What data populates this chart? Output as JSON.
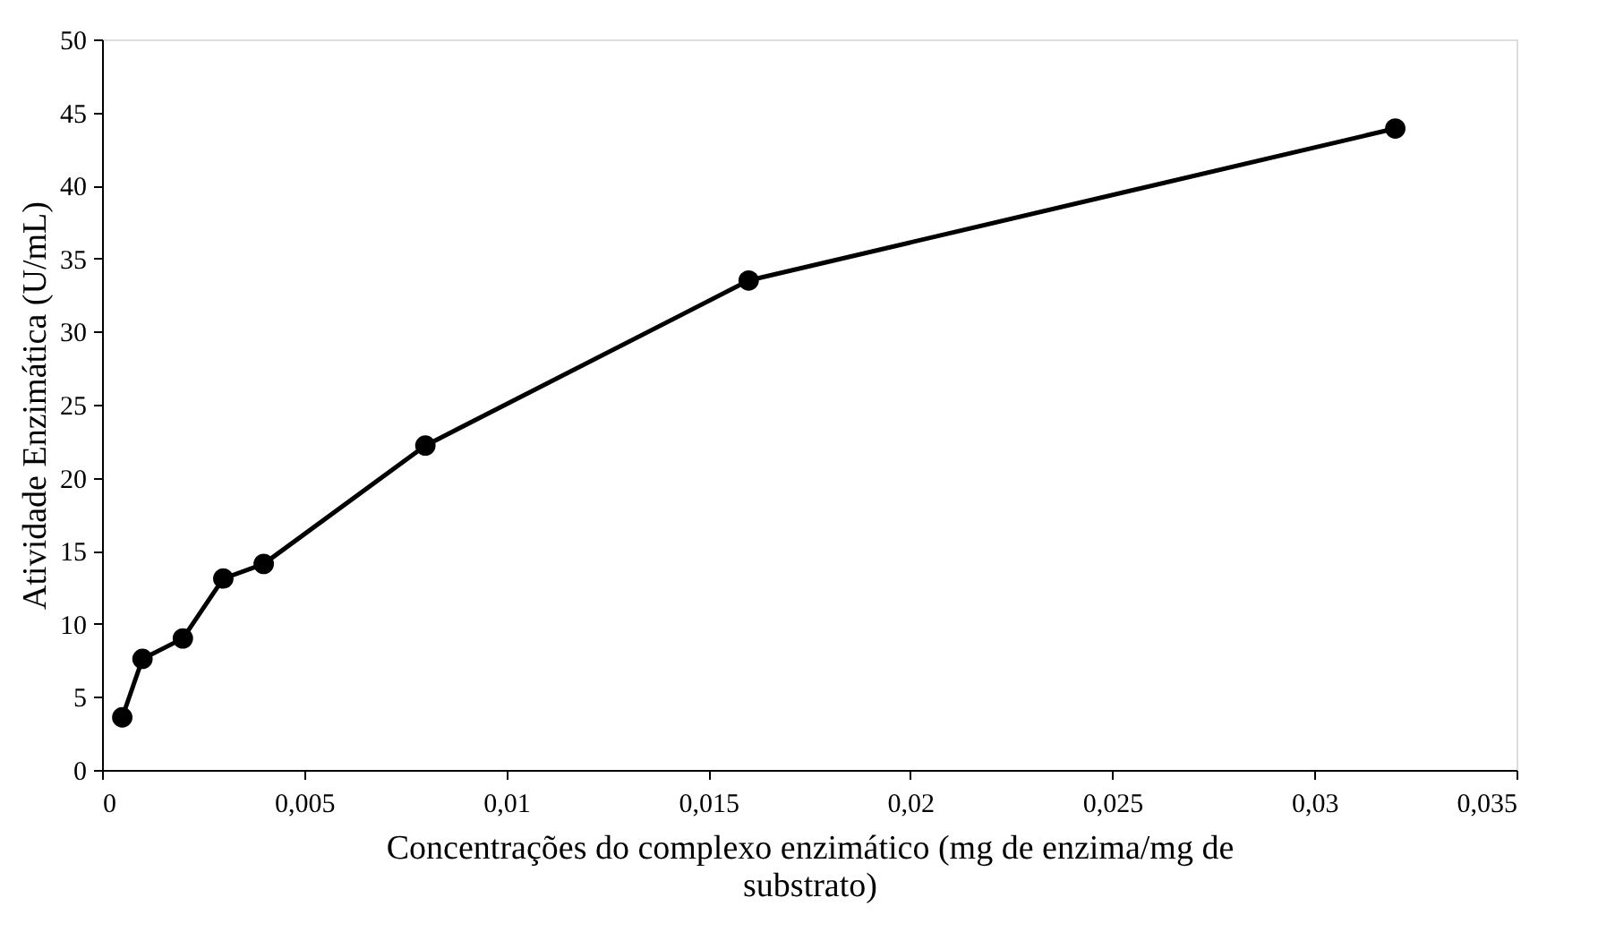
{
  "chart_data": {
    "type": "line",
    "xlabel": "Concentrações do complexo enzimático (mg de enzima/mg de substrato)",
    "ylabel": "Atividade Enzimática (U/mL)",
    "x": [
      0.0005,
      0.001,
      0.002,
      0.003,
      0.004,
      0.008,
      0.016,
      0.032
    ],
    "series": [
      {
        "color": "#000000",
        "values": [
          3.6,
          7.6,
          9.0,
          13.1,
          14.1,
          22.2,
          33.5,
          43.9
        ]
      }
    ],
    "xlim": [
      0,
      0.035
    ],
    "xticks": [
      0,
      {
        "value": 0.005,
        "label": "0,005"
      },
      {
        "value": 0.01,
        "label": "0,01"
      },
      {
        "value": 0.015,
        "label": "0,015"
      },
      {
        "value": 0.02,
        "label": "0,02"
      },
      {
        "value": 0.025,
        "label": "0,025"
      },
      {
        "value": 0.03,
        "label": "0,03"
      },
      {
        "value": 0.035,
        "label": "0,035"
      }
    ],
    "ylim": [
      0,
      50
    ],
    "yticks": [
      0,
      5,
      10,
      15,
      20,
      25,
      30,
      35,
      40,
      45,
      50
    ],
    "grid": false,
    "marker": "circle",
    "line_style": "solid"
  }
}
